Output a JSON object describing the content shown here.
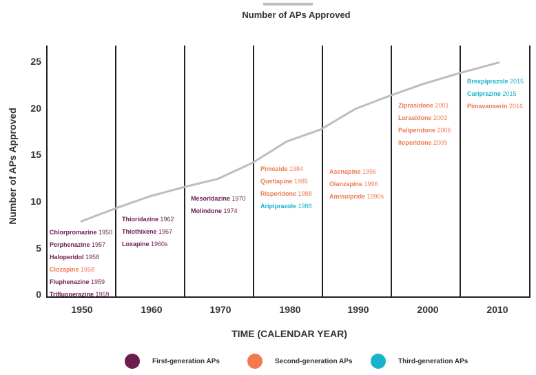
{
  "title": "Number of APs Approved",
  "colors": {
    "first_generation": "#6b1d4e",
    "second_generation": "#ef7a54",
    "third_generation": "#17b3c9",
    "line": "#bdbdbd",
    "axis": "#222222"
  },
  "axes": {
    "ylabel": "Number of APs Approved",
    "xlabel": "TIME (CALENDAR YEAR)",
    "yticks": [
      "25",
      "20",
      "15",
      "10",
      "5",
      "0"
    ],
    "xticks": [
      "1950",
      "1960",
      "1970",
      "1980",
      "1990",
      "2000",
      "2010"
    ]
  },
  "decades": [
    {
      "drugs": [
        {
          "name": "Chlorpromazine",
          "year": "1950",
          "gen": "1"
        },
        {
          "name": "Perphenazine",
          "year": "1957",
          "gen": "1"
        },
        {
          "name": "Haloperidol",
          "year": "1958",
          "gen": "1"
        },
        {
          "name": "Clozapine",
          "year": "1958",
          "gen": "2"
        },
        {
          "name": "Fluphenazine",
          "year": "1959",
          "gen": "1"
        },
        {
          "name": "Trifluoperazine",
          "year": "1959",
          "gen": "1"
        }
      ]
    },
    {
      "drugs": [
        {
          "name": "Thioridazine",
          "year": "1962",
          "gen": "1"
        },
        {
          "name": "Thiothixene",
          "year": "1967",
          "gen": "1"
        },
        {
          "name": "Loxapine",
          "year": "1960s",
          "gen": "1"
        }
      ]
    },
    {
      "drugs": [
        {
          "name": "Mesoridazine",
          "year": "1970",
          "gen": "1"
        },
        {
          "name": "Molindone",
          "year": "1974",
          "gen": "1"
        }
      ]
    },
    {
      "drugs": [
        {
          "name": "Pimozide",
          "year": "1984",
          "gen": "2"
        },
        {
          "name": "Quetiapine",
          "year": "1985",
          "gen": "2"
        },
        {
          "name": "Risperidone",
          "year": "1988",
          "gen": "2"
        },
        {
          "name": "Aripiprazole",
          "year": "1988",
          "gen": "3"
        }
      ]
    },
    {
      "drugs": [
        {
          "name": "Asenapine",
          "year": "1996",
          "gen": "2"
        },
        {
          "name": "Olanzapine",
          "year": "1996",
          "gen": "2"
        },
        {
          "name": "Amisulpride",
          "year": "1990s",
          "gen": "2"
        }
      ]
    },
    {
      "drugs": [
        {
          "name": "Ziprasidone",
          "year": "2001",
          "gen": "2"
        },
        {
          "name": "Lurasidone",
          "year": "2003",
          "gen": "2"
        },
        {
          "name": "Paliperidone",
          "year": "2006",
          "gen": "2"
        },
        {
          "name": "Iloperidone",
          "year": "2009",
          "gen": "2"
        }
      ]
    },
    {
      "drugs": [
        {
          "name": "Brexpiprazole",
          "year": "2015",
          "gen": "3"
        },
        {
          "name": "Cariprazine",
          "year": "2015",
          "gen": "3"
        },
        {
          "name": "Pimavanserin",
          "year": "2016",
          "gen": "2"
        }
      ]
    }
  ],
  "legend": {
    "first": "First-generation APs",
    "second": "Second-generation APs",
    "third": "Third-generation APs"
  },
  "chart_data": {
    "type": "line",
    "title": "Number of APs Approved",
    "xlabel": "TIME (CALENDAR YEAR)",
    "ylabel": "Number of APs Approved",
    "ylim": [
      0,
      26
    ],
    "xlim": [
      1945,
      2015
    ],
    "grid": "vertical dividers every 10 years (1955, 1965, ..., 2005)",
    "categories": [
      "1950",
      "1960",
      "1970",
      "1980",
      "1990",
      "2000",
      "2010"
    ],
    "x": [
      1950,
      1955,
      1960,
      1965,
      1970,
      1975,
      1980,
      1985,
      1990,
      1995,
      2000,
      2005,
      2011
    ],
    "series": [
      {
        "name": "Number of APs Approved",
        "values": [
          7.8,
          9.2,
          10.5,
          11.5,
          12.4,
          14.1,
          16.4,
          17.7,
          19.9,
          21.3,
          22.6,
          23.7,
          24.9
        ]
      }
    ],
    "annotations": [
      "Chlorpromazine 1950",
      "Perphenazine 1957",
      "Haloperidol 1958",
      "Clozapine 1958",
      "Fluphenazine 1959",
      "Trifluoperazine 1959",
      "Thioridazine 1962",
      "Thiothixene 1967",
      "Loxapine 1960s",
      "Mesoridazine 1970",
      "Molindone 1974",
      "Pimozide 1984",
      "Quetiapine 1985",
      "Risperidone 1988",
      "Aripiprazole 1988",
      "Asenapine 1996",
      "Olanzapine 1996",
      "Amisulpride 1990s",
      "Ziprasidone 2001",
      "Lurasidone 2003",
      "Paliperidone 2006",
      "Iloperidone 2009",
      "Brexpiprazole 2015",
      "Cariprazine 2015",
      "Pimavanserin 2016"
    ],
    "legend": [
      "First-generation APs",
      "Second-generation APs",
      "Third-generation APs"
    ],
    "legend_position": "bottom"
  }
}
